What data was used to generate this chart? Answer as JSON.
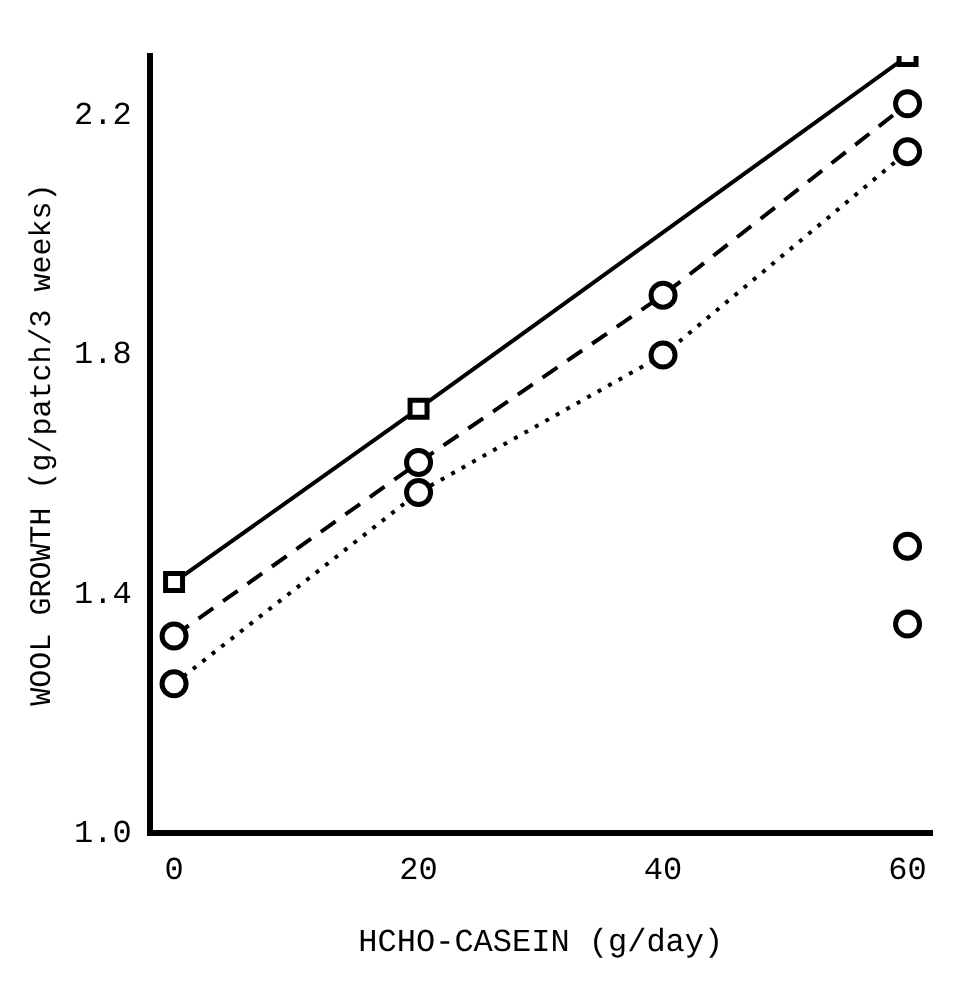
{
  "chart_data": {
    "type": "line",
    "xlabel": "HCHO-CASEIN (g/day)",
    "ylabel": "WOOL GROWTH (g/patch/3 weeks)",
    "x": [
      0,
      20,
      40,
      60
    ],
    "series": [
      {
        "color": "#000000",
        "values": [
          1.42,
          1.71,
          null,
          2.3
        ],
        "marker": "square",
        "line_style": "solid"
      },
      {
        "color": "#000000",
        "values": [
          1.33,
          1.62,
          1.9,
          2.22
        ],
        "marker": "circle",
        "line_style": "dashed"
      },
      {
        "color": "#000000",
        "values": [
          1.25,
          1.57,
          1.8,
          2.14
        ],
        "marker": "circle",
        "line_style": "dotted"
      },
      {
        "type": "scatter",
        "color": "#000000",
        "x": [
          60,
          60
        ],
        "values": [
          1.48,
          1.35
        ],
        "marker": "circle"
      }
    ],
    "xlim": [
      -2,
      62
    ],
    "xticks": [
      0,
      20,
      40,
      60
    ],
    "ylim": [
      1.0,
      2.3
    ],
    "yticks": [
      {
        "value": 1.0,
        "label": "1.0"
      },
      {
        "value": 1.4,
        "label": "1.4"
      },
      {
        "value": 1.8,
        "label": "1.8"
      },
      {
        "value": 2.2,
        "label": "2.2"
      }
    ],
    "grid": false,
    "legend": false
  }
}
